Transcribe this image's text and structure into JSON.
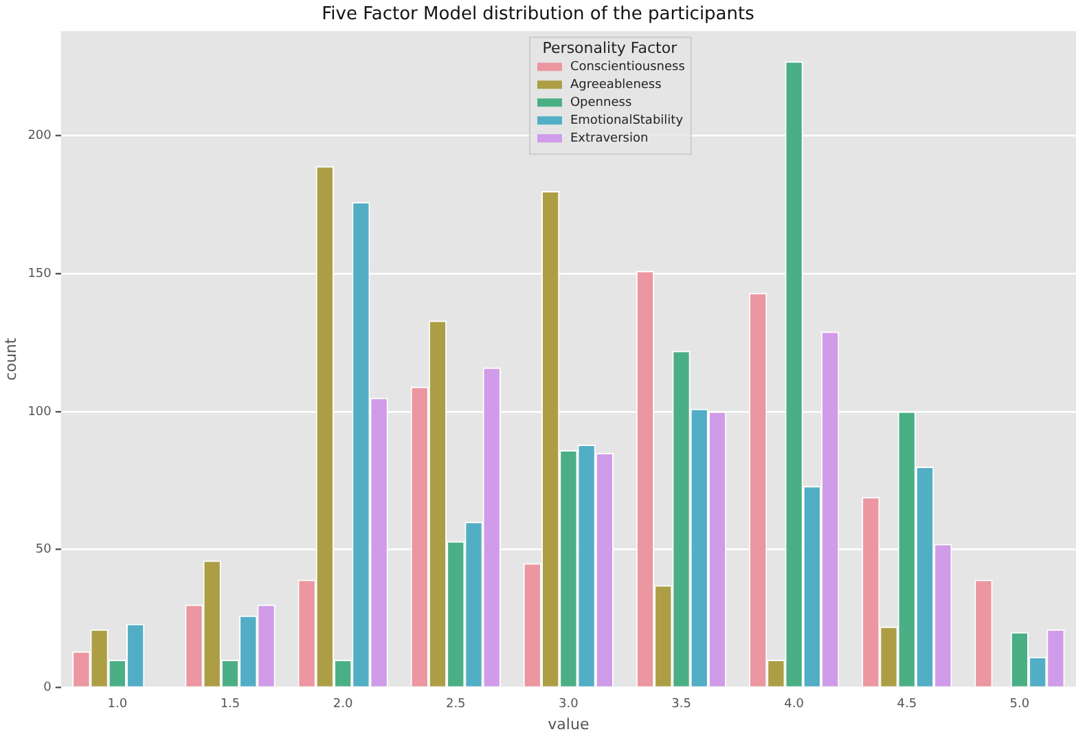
{
  "chart_data": {
    "type": "bar",
    "title": "Five Factor Model distribution of the participants",
    "xlabel": "value",
    "ylabel": "count",
    "legend_title": "Personality Factor",
    "categories": [
      "1.0",
      "1.5",
      "2.0",
      "2.5",
      "3.0",
      "3.5",
      "4.0",
      "4.5",
      "5.0"
    ],
    "series": [
      {
        "name": "Conscientiousness",
        "color": "#eb96a0",
        "values": [
          13,
          30,
          39,
          109,
          45,
          151,
          143,
          69,
          39
        ]
      },
      {
        "name": "Agreeableness",
        "color": "#ad9e45",
        "values": [
          21,
          46,
          189,
          133,
          180,
          37,
          10,
          22,
          null
        ]
      },
      {
        "name": "Openness",
        "color": "#4aaf85",
        "values": [
          10,
          10,
          10,
          53,
          86,
          122,
          227,
          100,
          20
        ]
      },
      {
        "name": "EmotionalStability",
        "color": "#52aec5",
        "values": [
          23,
          26,
          176,
          60,
          88,
          101,
          73,
          80,
          11
        ]
      },
      {
        "name": "Extraversion",
        "color": "#d09be8",
        "values": [
          null,
          30,
          105,
          116,
          85,
          100,
          129,
          52,
          21
        ]
      }
    ],
    "ylim": [
      0,
      238
    ],
    "yticks": [
      0,
      50,
      100,
      150,
      200
    ],
    "grid": "y",
    "legend": "top"
  }
}
